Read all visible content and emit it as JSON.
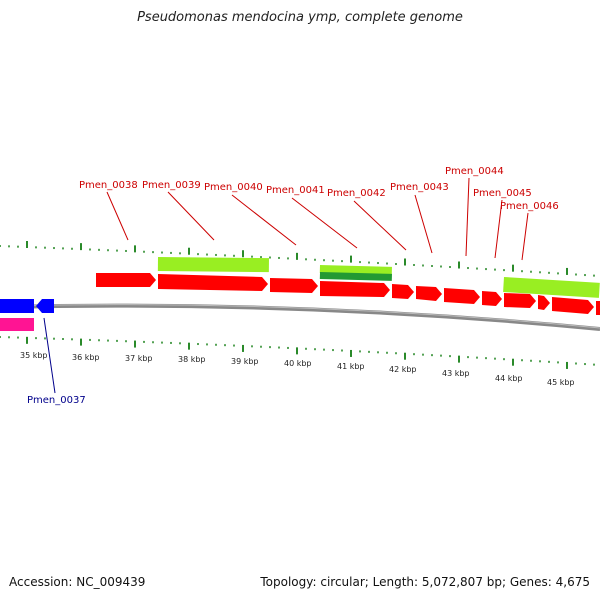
{
  "title": "Pseudomonas mendocina ymp, complete genome",
  "footer": {
    "accession": "Accession: NC_009439",
    "summary": "Topology: circular; Length: 5,072,807 bp; Genes: 4,675"
  },
  "axis_labels": [
    "35 kbp",
    "36 kbp",
    "37 kbp",
    "38 kbp",
    "39 kbp",
    "40 kbp",
    "41 kbp",
    "42 kbp",
    "43 kbp",
    "44 kbp",
    "45 kbp"
  ],
  "gene_labels_forward": [
    "Pmen_0038",
    "Pmen_0039",
    "Pmen_0040",
    "Pmen_0041",
    "Pmen_0042",
    "Pmen_0043",
    "Pmen_0044",
    "Pmen_0045",
    "Pmen_0046"
  ],
  "gene_labels_reverse": [
    "Pmen_0037"
  ],
  "colors": {
    "forward_gene": "#ff0000",
    "reverse_gene": "#0000ff",
    "pink_feature": "#ff1493",
    "light_green_feature": "#99ee22",
    "dark_green_feature": "#229933",
    "tick_green": "#2a8a2a",
    "forward_label": "#cc0000",
    "reverse_label": "#00008b",
    "backbone": "#888888"
  }
}
